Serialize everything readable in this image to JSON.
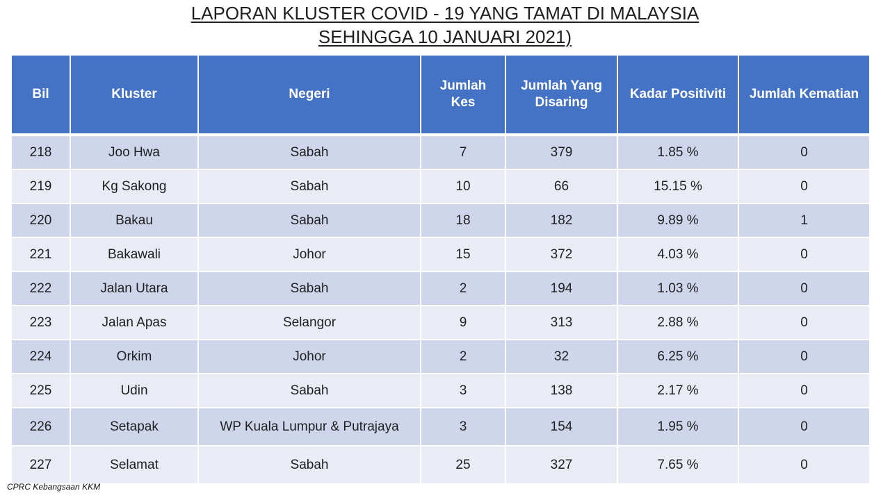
{
  "title": {
    "line1": "LAPORAN KLUSTER COVID - 19 YANG TAMAT DI MALAYSIA",
    "line2": "SEHINGGA 10 JANUARI 2021)"
  },
  "table": {
    "headers": {
      "bil": "Bil",
      "kluster": "Kluster",
      "negeri": "Negeri",
      "jumlah_kes_1": "Jumlah",
      "jumlah_kes_2": "Kes",
      "disaring_1": "Jumlah Yang",
      "disaring_2": "Disaring",
      "kadar": "Kadar Positiviti",
      "kematian": "Jumlah Kematian"
    },
    "rows": [
      {
        "bil": "218",
        "kluster": "Joo Hwa",
        "negeri": "Sabah",
        "kes": "7",
        "disaring": "379",
        "kadar": "1.85 %",
        "kematian": "0"
      },
      {
        "bil": "219",
        "kluster": "Kg Sakong",
        "negeri": "Sabah",
        "kes": "10",
        "disaring": "66",
        "kadar": "15.15 %",
        "kematian": "0"
      },
      {
        "bil": "220",
        "kluster": "Bakau",
        "negeri": "Sabah",
        "kes": "18",
        "disaring": "182",
        "kadar": "9.89 %",
        "kematian": "1"
      },
      {
        "bil": "221",
        "kluster": "Bakawali",
        "negeri": "Johor",
        "kes": "15",
        "disaring": "372",
        "kadar": "4.03 %",
        "kematian": "0"
      },
      {
        "bil": "222",
        "kluster": "Jalan Utara",
        "negeri": "Sabah",
        "kes": "2",
        "disaring": "194",
        "kadar": "1.03 %",
        "kematian": "0"
      },
      {
        "bil": "223",
        "kluster": "Jalan Apas",
        "negeri": "Selangor",
        "kes": "9",
        "disaring": "313",
        "kadar": "2.88 %",
        "kematian": "0"
      },
      {
        "bil": "224",
        "kluster": "Orkim",
        "negeri": "Johor",
        "kes": "2",
        "disaring": "32",
        "kadar": "6.25 %",
        "kematian": "0"
      },
      {
        "bil": "225",
        "kluster": "Udin",
        "negeri": "Sabah",
        "kes": "3",
        "disaring": "138",
        "kadar": "2.17 %",
        "kematian": "0"
      },
      {
        "bil": "226",
        "kluster": "Setapak",
        "negeri": "WP Kuala Lumpur & Putrajaya",
        "kes": "3",
        "disaring": "154",
        "kadar": "1.95 %",
        "kematian": "0"
      },
      {
        "bil": "227",
        "kluster": "Selamat",
        "negeri": "Sabah",
        "kes": "25",
        "disaring": "327",
        "kadar": "7.65 %",
        "kematian": "0"
      }
    ]
  },
  "footer": {
    "source": "CPRC Kebangsaan KKM"
  },
  "colors": {
    "header_bg": "#4472c4",
    "row_odd": "#cfd5ea",
    "row_even": "#e9ebf5"
  }
}
